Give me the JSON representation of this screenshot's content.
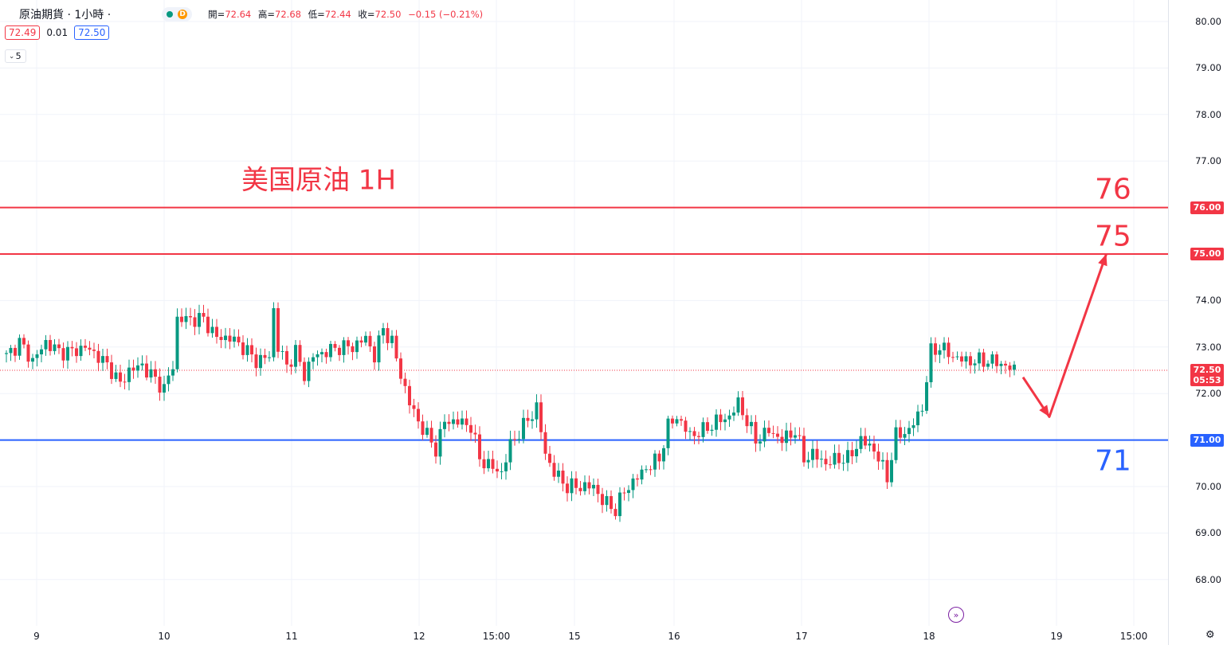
{
  "header": {
    "symbol_title": "原油期貨 · 1小時 ·",
    "status_badge": "D",
    "ohlc": {
      "open_label": "開",
      "open": "72.64",
      "high_label": "高",
      "high": "72.68",
      "low_label": "低",
      "low": "72.44",
      "close_label": "收",
      "close": "72.50",
      "change": "−0.15 (−0.21%)"
    },
    "bid": "72.49",
    "spread": "0.01",
    "ask": "72.50",
    "indicator_toggle": "5"
  },
  "price_axis": {
    "ticks": [
      "80.00",
      "79.00",
      "78.00",
      "77.00",
      "76.00",
      "75.00",
      "74.00",
      "73.00",
      "72.00",
      "71.00",
      "70.00",
      "69.00",
      "68.00"
    ],
    "current_price": "72.50",
    "countdown": "05:53"
  },
  "time_axis": {
    "ticks": [
      "9",
      "10",
      "11",
      "12",
      "15:00",
      "15",
      "16",
      "17",
      "18",
      "19",
      "15:00"
    ]
  },
  "annotations": {
    "title": "美国原油 1H",
    "level_76": "76",
    "level_75": "75",
    "level_71": "71"
  },
  "colors": {
    "up": "#089981",
    "down": "#f23645",
    "resistance": "#f23645",
    "support": "#2962ff"
  },
  "chart_data": {
    "type": "candlestick",
    "title": "美国原油 1H",
    "interval": "1小時",
    "ylim": [
      67.6,
      80.2
    ],
    "grid": true,
    "horizontal_levels": [
      {
        "value": 76.0,
        "label": "76",
        "color": "#f23645"
      },
      {
        "value": 75.0,
        "label": "75",
        "color": "#f23645"
      },
      {
        "value": 71.0,
        "label": "71",
        "color": "#2962ff"
      }
    ],
    "projection_path": [
      {
        "bar": 232,
        "price": 72.35
      },
      {
        "bar": 238,
        "price": 71.5
      },
      {
        "bar": 251,
        "price": 75.0
      }
    ],
    "close_path": [
      [
        0,
        72.8
      ],
      [
        3,
        73.1
      ],
      [
        6,
        72.7
      ],
      [
        9,
        73.1
      ],
      [
        12,
        72.9
      ],
      [
        15,
        72.9
      ],
      [
        18,
        73.0
      ],
      [
        21,
        72.8
      ],
      [
        24,
        72.5
      ],
      [
        26,
        72.2
      ],
      [
        28,
        72.5
      ],
      [
        31,
        72.6
      ],
      [
        34,
        72.3
      ],
      [
        36,
        72.1
      ],
      [
        38,
        72.6
      ],
      [
        39,
        73.6
      ],
      [
        42,
        73.6
      ],
      [
        45,
        73.6
      ],
      [
        48,
        73.2
      ],
      [
        51,
        73.2
      ],
      [
        54,
        73.0
      ],
      [
        57,
        72.7
      ],
      [
        60,
        72.8
      ],
      [
        61,
        73.8
      ],
      [
        62,
        73.0
      ],
      [
        64,
        72.6
      ],
      [
        66,
        72.9
      ],
      [
        68,
        72.4
      ],
      [
        70,
        72.8
      ],
      [
        73,
        72.9
      ],
      [
        76,
        73.0
      ],
      [
        79,
        73.0
      ],
      [
        82,
        73.2
      ],
      [
        84,
        72.8
      ],
      [
        86,
        73.4
      ],
      [
        88,
        73.1
      ],
      [
        90,
        72.4
      ],
      [
        92,
        71.8
      ],
      [
        94,
        71.4
      ],
      [
        96,
        71.1
      ],
      [
        98,
        70.8
      ],
      [
        100,
        71.4
      ],
      [
        103,
        71.4
      ],
      [
        106,
        71.3
      ],
      [
        108,
        70.6
      ],
      [
        111,
        70.4
      ],
      [
        113,
        70.3
      ],
      [
        115,
        70.9
      ],
      [
        118,
        71.3
      ],
      [
        121,
        71.7
      ],
      [
        123,
        70.7
      ],
      [
        125,
        70.3
      ],
      [
        128,
        70.0
      ],
      [
        131,
        70.0
      ],
      [
        134,
        70.0
      ],
      [
        136,
        69.7
      ],
      [
        139,
        69.5
      ],
      [
        141,
        69.9
      ],
      [
        143,
        70.1
      ],
      [
        146,
        70.4
      ],
      [
        149,
        70.6
      ],
      [
        151,
        71.3
      ],
      [
        153,
        71.5
      ],
      [
        156,
        71.1
      ],
      [
        159,
        71.2
      ],
      [
        162,
        71.4
      ],
      [
        165,
        71.5
      ],
      [
        167,
        71.8
      ],
      [
        169,
        71.4
      ],
      [
        171,
        71.0
      ],
      [
        174,
        71.2
      ],
      [
        177,
        71.0
      ],
      [
        180,
        71.2
      ],
      [
        182,
        70.6
      ],
      [
        184,
        70.7
      ],
      [
        187,
        70.5
      ],
      [
        190,
        70.6
      ],
      [
        192,
        70.6
      ],
      [
        195,
        71.0
      ],
      [
        198,
        70.8
      ],
      [
        201,
        70.2
      ],
      [
        203,
        71.1
      ],
      [
        206,
        71.2
      ],
      [
        209,
        71.7
      ],
      [
        211,
        72.9
      ],
      [
        213,
        73.0
      ],
      [
        216,
        72.8
      ],
      [
        219,
        72.7
      ],
      [
        222,
        72.7
      ],
      [
        225,
        72.7
      ],
      [
        228,
        72.6
      ],
      [
        230,
        72.5
      ]
    ]
  }
}
